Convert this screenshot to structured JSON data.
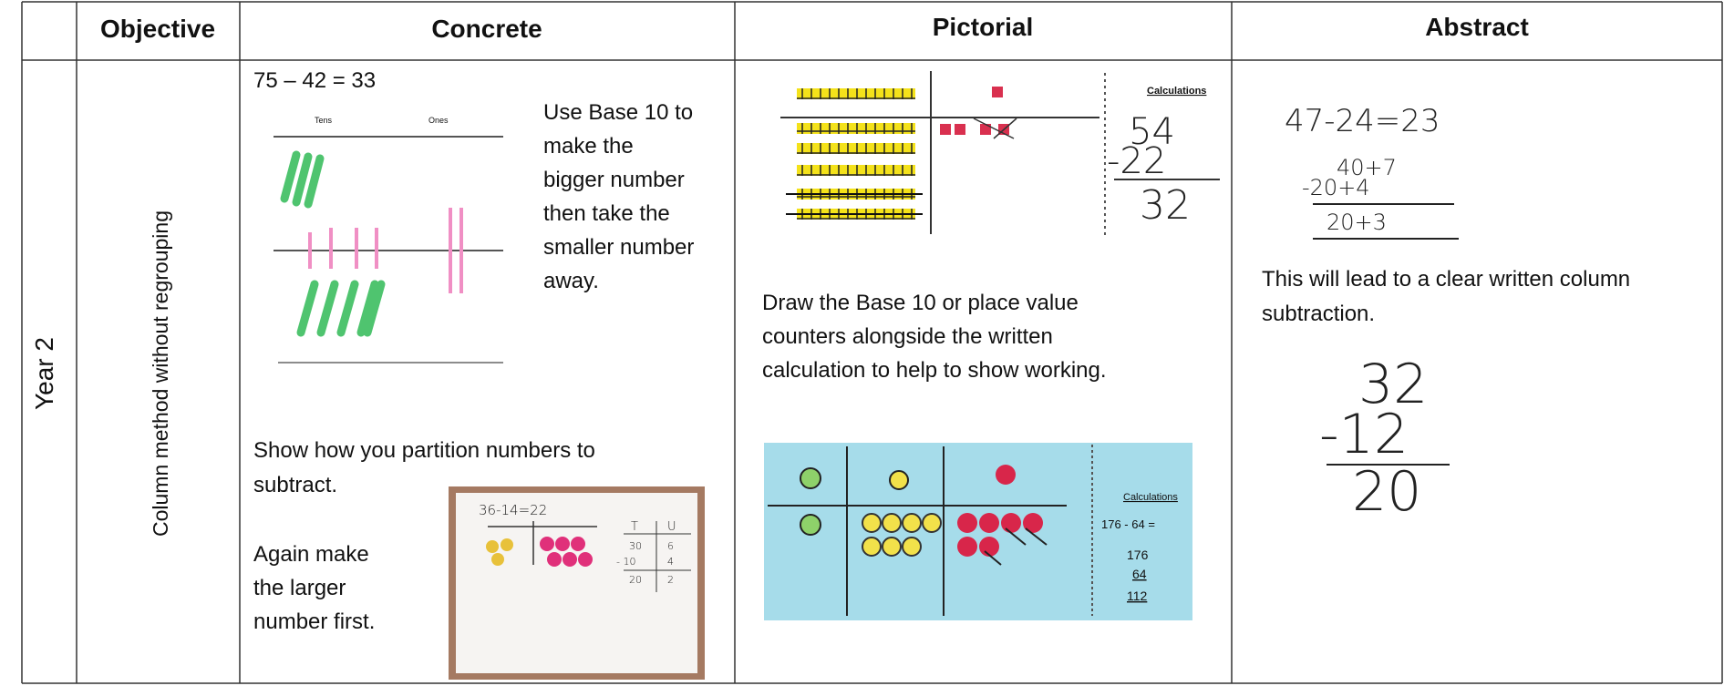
{
  "table": {
    "header": [
      "Objective",
      "Concrete",
      "Pictorial",
      "Abstract"
    ],
    "row": {
      "year": "Year 2",
      "objective": "Column method without regrouping",
      "concrete": {
        "equation": "75 – 42 = 33",
        "diagram_labels": [
          "Tens",
          "Ones"
        ],
        "instruction_lines": [
          "Use Base 10 to",
          "make the",
          "bigger number",
          "then take the",
          "smaller number",
          "away."
        ],
        "partition_lines": [
          "Show how you partition numbers to",
          "subtract."
        ],
        "again_lines": [
          "Again make",
          "the larger",
          "number first."
        ],
        "photo": {
          "equation": "36-14=22",
          "headers": [
            "T",
            "U"
          ],
          "rows": [
            [
              "30",
              "6"
            ],
            [
              "- 10",
              "4"
            ],
            [
              "20",
              "2"
            ]
          ]
        }
      },
      "pictorial": {
        "top": {
          "label": "Calculations",
          "working": [
            "54",
            "-22",
            "32"
          ]
        },
        "text_lines": [
          "Draw the Base 10 or place value",
          "counters alongside the written",
          "calculation to help to show working."
        ],
        "bottom": {
          "label": "Calculations",
          "working": [
            "176 - 64 =",
            "176",
            "64",
            "112"
          ]
        }
      },
      "abstract": {
        "equation": "47-24=23",
        "partition": [
          "40+7",
          "-20+4",
          "20+3"
        ],
        "text_lines": [
          "This will lead to a clear written column",
          "subtraction."
        ],
        "column": [
          "32",
          "-12",
          "20"
        ]
      }
    }
  }
}
